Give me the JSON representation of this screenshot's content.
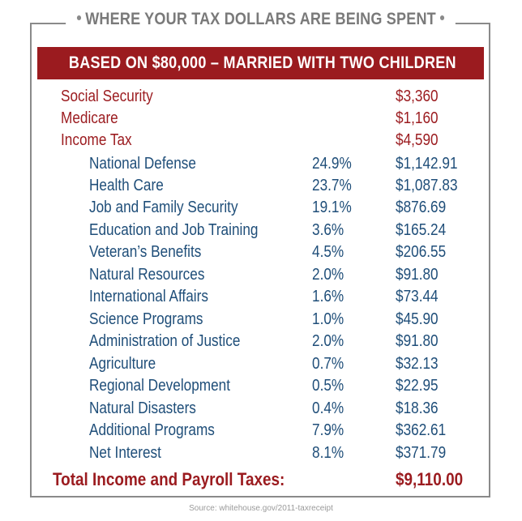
{
  "title": "WHERE YOUR TAX DOLLARS ARE BEING SPENT",
  "banner": "BASED ON $80,000 – MARRIED WITH TWO CHILDREN",
  "main_rows": [
    {
      "label": "Social Security",
      "amount": "$3,360"
    },
    {
      "label": "Medicare",
      "amount": "$1,160"
    },
    {
      "label": "Income Tax",
      "amount": "$4,590"
    }
  ],
  "sub_rows": [
    {
      "label": "National Defense",
      "pct": "24.9%",
      "amount": "$1,142.91"
    },
    {
      "label": "Health Care",
      "pct": "23.7%",
      "amount": "$1,087.83"
    },
    {
      "label": "Job and Family Security",
      "pct": "19.1%",
      "amount": "$876.69"
    },
    {
      "label": "Education and Job Training",
      "pct": "3.6%",
      "amount": "$165.24"
    },
    {
      "label": "Veteran’s Benefits",
      "pct": "4.5%",
      "amount": "$206.55"
    },
    {
      "label": "Natural Resources",
      "pct": "2.0%",
      "amount": "$91.80"
    },
    {
      "label": "International Affairs",
      "pct": "1.6%",
      "amount": "$73.44"
    },
    {
      "label": "Science Programs",
      "pct": "1.0%",
      "amount": "$45.90"
    },
    {
      "label": "Administration of Justice",
      "pct": "2.0%",
      "amount": "$91.80"
    },
    {
      "label": "Agriculture",
      "pct": "0.7%",
      "amount": "$32.13"
    },
    {
      "label": "Regional Development",
      "pct": "0.5%",
      "amount": "$22.95"
    },
    {
      "label": "Natural Disasters",
      "pct": "0.4%",
      "amount": "$18.36"
    },
    {
      "label": "Additional Programs",
      "pct": "7.9%",
      "amount": "$362.61"
    },
    {
      "label": "Net Interest",
      "pct": "8.1%",
      "amount": "$371.79"
    }
  ],
  "total": {
    "label": "Total Income and Payroll Taxes:",
    "amount": "$9,110.00"
  },
  "source": "Source: whitehouse.gov/2011-taxreceipt",
  "colors": {
    "accent_red": "#9b1b1f",
    "text_blue": "#1f4e79",
    "border_gray": "#8a8a8a"
  }
}
